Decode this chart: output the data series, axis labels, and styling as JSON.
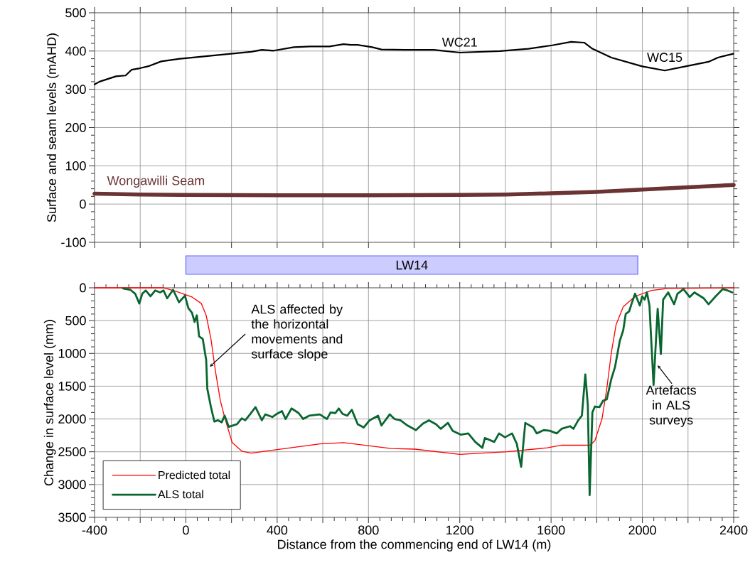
{
  "chart_data": [
    {
      "type": "line",
      "ylabel": "Surface and seam levels (mAHD)",
      "xlim": [
        -400,
        2400
      ],
      "ylim": [
        -100,
        500
      ],
      "xticks": [
        -400,
        -200,
        0,
        200,
        400,
        600,
        800,
        1000,
        1200,
        1400,
        1600,
        1800,
        2000,
        2200,
        2400
      ],
      "yticks": [
        -100,
        0,
        100,
        200,
        300,
        400,
        500
      ],
      "tick_labels": "y",
      "grid": true,
      "marker": "none",
      "line_style": "solid",
      "series": [
        {
          "color": "#000000",
          "x": [
            -400,
            -378,
            -347,
            -306,
            -264,
            -238,
            -202,
            -160,
            -108,
            -25,
            48,
            182,
            286,
            333,
            385,
            473,
            546,
            629,
            691,
            722,
            753,
            816,
            857,
            961,
            1086,
            1200,
            1376,
            1501,
            1605,
            1688,
            1745,
            1781,
            1864,
            1999,
            2098,
            2197,
            2290,
            2331,
            2399
          ],
          "values": [
            313,
            320,
            326,
            334,
            336,
            351,
            355,
            361,
            373,
            380,
            384,
            392,
            398,
            403,
            401,
            410,
            412,
            412,
            418,
            416,
            416,
            410,
            404,
            403,
            403,
            396,
            400,
            406,
            415,
            424,
            422,
            406,
            383,
            360,
            349,
            361,
            372,
            383,
            393
          ]
        },
        {
          "name": "Wongawilli Seam",
          "color": "#6b3333",
          "x": [
            -400,
            -200,
            0,
            400,
            800,
            1200,
            1400,
            1600,
            1800,
            2000,
            2200,
            2400
          ],
          "values": [
            27,
            25,
            24,
            23,
            23,
            24,
            25,
            28,
            32,
            38,
            44,
            50
          ]
        }
      ],
      "annotations": [
        {
          "text": "WC21",
          "x": 1200,
          "y": 396
        },
        {
          "text": "WC15",
          "x": 2098,
          "y": 349
        }
      ]
    },
    {
      "type": "bar",
      "orientation": "horizontal",
      "categories": [
        "LW14"
      ],
      "base": [
        0
      ],
      "values": [
        1980
      ],
      "color": "#ccccff",
      "xlim": [
        -400,
        2400
      ],
      "tick_labels": false
    },
    {
      "type": "line",
      "xlabel": "Distance from the commencing end of LW14 (m)",
      "ylabel": "Change in surface level (mm)",
      "xlim": [
        -400,
        2400
      ],
      "ylim": [
        3500,
        0
      ],
      "xticks": [
        -400,
        {
          "value": -200,
          "label": null
        },
        0,
        {
          "value": 200,
          "label": null
        },
        400,
        {
          "value": 600,
          "label": null
        },
        800,
        {
          "value": 1000,
          "label": null
        },
        1200,
        {
          "value": 1400,
          "label": null
        },
        1600,
        {
          "value": 1800,
          "label": null
        },
        2000,
        {
          "value": 2200,
          "label": null
        },
        2400
      ],
      "yticks": [
        0,
        500,
        1000,
        1500,
        2000,
        2500,
        3000,
        3500
      ],
      "grid": true,
      "legend": "bottom left",
      "marker": "none",
      "line_style": "solid",
      "series": [
        {
          "name": "Predicted total",
          "color": "#ff0000",
          "x": [
            -400,
            -100,
            -46,
            27,
            68,
            89,
            110,
            130,
            151,
            172,
            203,
            245,
            286,
            348,
            587,
            691,
            899,
            1003,
            1200,
            1408,
            1584,
            1646,
            1771,
            1792,
            1823,
            1844,
            1864,
            1885,
            1916,
            1968,
            2041,
            2113,
            2400
          ],
          "values": [
            0,
            0,
            50,
            140,
            240,
            420,
            780,
            1280,
            1720,
            2000,
            2360,
            2490,
            2520,
            2490,
            2380,
            2360,
            2450,
            2460,
            2540,
            2500,
            2440,
            2400,
            2400,
            2330,
            2000,
            1540,
            990,
            560,
            290,
            130,
            40,
            10,
            0
          ]
        },
        {
          "name": "ALS total",
          "color": "#0a6630",
          "x": [
            -275,
            -243,
            -222,
            -204,
            -191,
            -176,
            -155,
            -134,
            -113,
            -98,
            -82,
            -56,
            -30,
            -4,
            11,
            27,
            38,
            48,
            58,
            74,
            89,
            94,
            110,
            125,
            141,
            157,
            170,
            188,
            224,
            245,
            260,
            281,
            305,
            333,
            348,
            379,
            395,
            421,
            437,
            463,
            494,
            514,
            540,
            587,
            618,
            634,
            655,
            670,
            686,
            707,
            727,
            753,
            779,
            805,
            842,
            857,
            893,
            914,
            940,
            971,
            1008,
            1039,
            1065,
            1096,
            1117,
            1148,
            1169,
            1205,
            1237,
            1268,
            1299,
            1310,
            1351,
            1372,
            1398,
            1429,
            1450,
            1469,
            1487,
            1522,
            1537,
            1568,
            1594,
            1625,
            1646,
            1683,
            1698,
            1719,
            1735,
            1750,
            1761,
            1769,
            1781,
            1792,
            1812,
            1828,
            1844,
            1864,
            1880,
            1901,
            1916,
            1927,
            1942,
            1953,
            1968,
            1989,
            1999,
            2010,
            2020,
            2031,
            2049,
            2067,
            2081,
            2091,
            2113,
            2139,
            2154,
            2180,
            2207,
            2228,
            2269,
            2290,
            2321,
            2352,
            2373,
            2394
          ],
          "values": [
            10,
            30,
            90,
            240,
            90,
            40,
            130,
            40,
            70,
            40,
            160,
            30,
            220,
            120,
            310,
            380,
            520,
            420,
            740,
            780,
            1100,
            1540,
            1820,
            2040,
            2020,
            2050,
            1950,
            2120,
            2080,
            1990,
            2020,
            1930,
            1820,
            2020,
            1930,
            1970,
            1930,
            1880,
            2000,
            1840,
            1910,
            2000,
            1950,
            1930,
            2000,
            1900,
            1910,
            1840,
            1920,
            1950,
            1860,
            2080,
            2130,
            2020,
            1950,
            2100,
            1930,
            2000,
            2020,
            2100,
            2170,
            2070,
            2020,
            2080,
            2150,
            2060,
            2180,
            2240,
            2220,
            2350,
            2440,
            2290,
            2350,
            2220,
            2280,
            2220,
            2380,
            2730,
            2060,
            2130,
            2220,
            2170,
            2180,
            2220,
            2150,
            2110,
            2150,
            2020,
            1950,
            1320,
            1790,
            3160,
            1900,
            1810,
            1820,
            1720,
            1700,
            1390,
            1210,
            810,
            650,
            400,
            360,
            240,
            90,
            270,
            130,
            180,
            70,
            270,
            1480,
            320,
            1010,
            180,
            70,
            250,
            90,
            20,
            140,
            70,
            160,
            250,
            130,
            20,
            40,
            70
          ]
        }
      ],
      "annotations": [
        {
          "text": "ALS affected by the horizontal movements and surface slope",
          "x": 105,
          "y": 1203
        },
        {
          "text": "Artefacts in ALS surveys",
          "x": 2067,
          "y": 1181
        }
      ]
    }
  ]
}
